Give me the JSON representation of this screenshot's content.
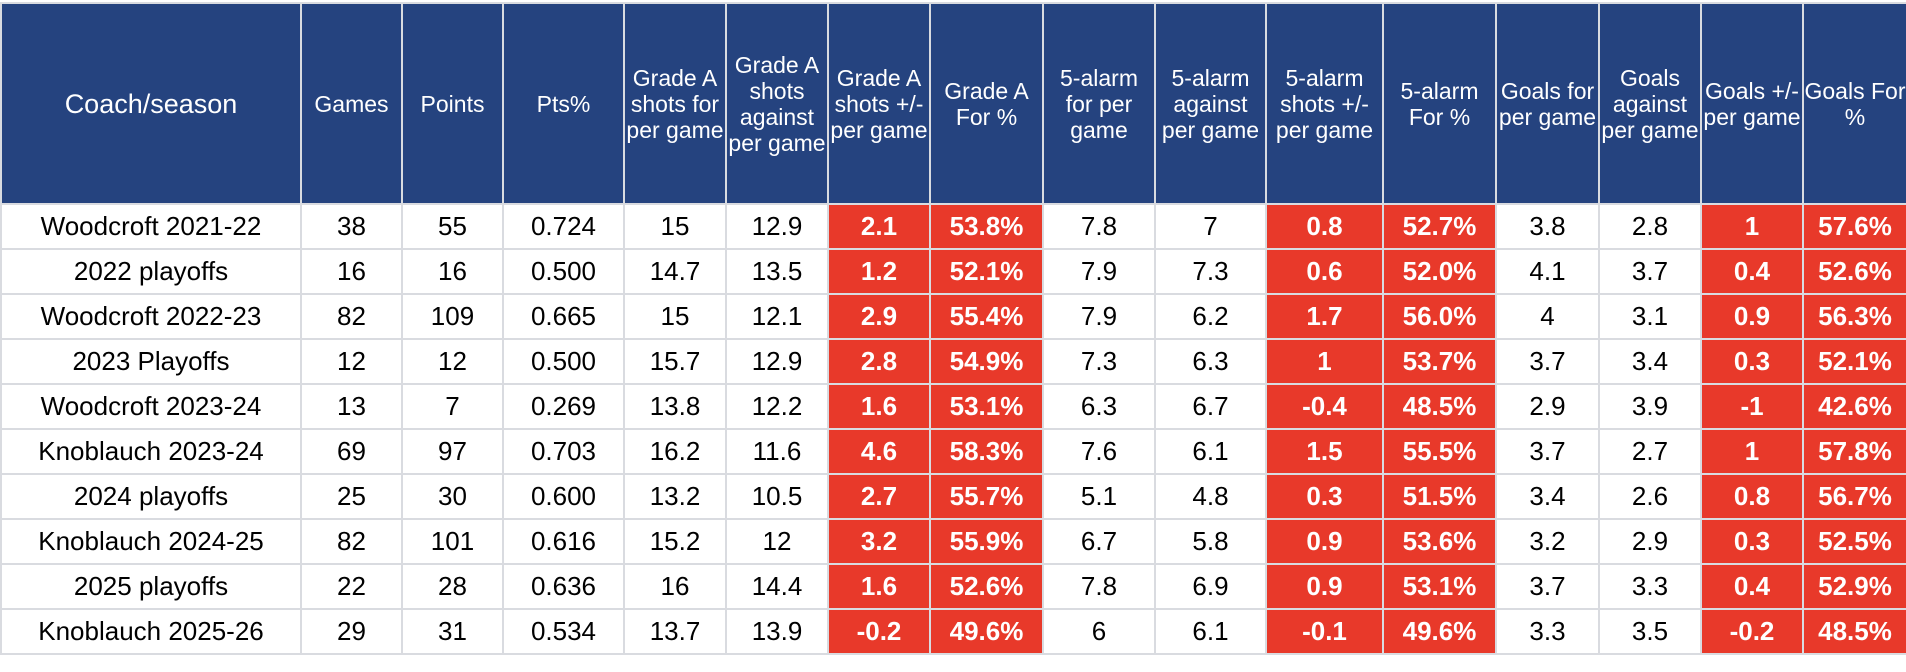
{
  "table": {
    "headers": [
      "Coach/season",
      "Games",
      "Points",
      "Pts%",
      "Grade A shots for per game",
      "Grade A shots against per game",
      "Grade A shots +/- per game",
      "Grade A For %",
      "5-alarm for per game",
      "5-alarm against per game",
      "5-alarm shots +/- per game",
      "5-alarm For %",
      "Goals for per game",
      "Goals against per game",
      "Goals +/- per game",
      "Goals For %"
    ],
    "highlight_color": "#e8392a",
    "header_color": "#25437f",
    "highlighted_columns": [
      6,
      7,
      10,
      11,
      14,
      15
    ],
    "rows": [
      [
        "Woodcroft 2021-22",
        "38",
        "55",
        "0.724",
        "15",
        "12.9",
        "2.1",
        "53.8%",
        "7.8",
        "7",
        "0.8",
        "52.7%",
        "3.8",
        "2.8",
        "1",
        "57.6%"
      ],
      [
        "2022 playoffs",
        "16",
        "16",
        "0.500",
        "14.7",
        "13.5",
        "1.2",
        "52.1%",
        "7.9",
        "7.3",
        "0.6",
        "52.0%",
        "4.1",
        "3.7",
        "0.4",
        "52.6%"
      ],
      [
        "Woodcroft 2022-23",
        "82",
        "109",
        "0.665",
        "15",
        "12.1",
        "2.9",
        "55.4%",
        "7.9",
        "6.2",
        "1.7",
        "56.0%",
        "4",
        "3.1",
        "0.9",
        "56.3%"
      ],
      [
        "2023 Playoffs",
        "12",
        "12",
        "0.500",
        "15.7",
        "12.9",
        "2.8",
        "54.9%",
        "7.3",
        "6.3",
        "1",
        "53.7%",
        "3.7",
        "3.4",
        "0.3",
        "52.1%"
      ],
      [
        "Woodcroft 2023-24",
        "13",
        "7",
        "0.269",
        "13.8",
        "12.2",
        "1.6",
        "53.1%",
        "6.3",
        "6.7",
        "-0.4",
        "48.5%",
        "2.9",
        "3.9",
        "-1",
        "42.6%"
      ],
      [
        "Knoblauch 2023-24",
        "69",
        "97",
        "0.703",
        "16.2",
        "11.6",
        "4.6",
        "58.3%",
        "7.6",
        "6.1",
        "1.5",
        "55.5%",
        "3.7",
        "2.7",
        "1",
        "57.8%"
      ],
      [
        "2024 playoffs",
        "25",
        "30",
        "0.600",
        "13.2",
        "10.5",
        "2.7",
        "55.7%",
        "5.1",
        "4.8",
        "0.3",
        "51.5%",
        "3.4",
        "2.6",
        "0.8",
        "56.7%"
      ],
      [
        "Knoblauch 2024-25",
        "82",
        "101",
        "0.616",
        "15.2",
        "12",
        "3.2",
        "55.9%",
        "6.7",
        "5.8",
        "0.9",
        "53.6%",
        "3.2",
        "2.9",
        "0.3",
        "52.5%"
      ],
      [
        "2025 playoffs",
        "22",
        "28",
        "0.636",
        "16",
        "14.4",
        "1.6",
        "52.6%",
        "7.8",
        "6.9",
        "0.9",
        "53.1%",
        "3.7",
        "3.3",
        "0.4",
        "52.9%"
      ],
      [
        "Knoblauch 2025-26",
        "29",
        "31",
        "0.534",
        "13.7",
        "13.9",
        "-0.2",
        "49.6%",
        "6",
        "6.1",
        "-0.1",
        "49.6%",
        "3.3",
        "3.5",
        "-0.2",
        "48.5%"
      ]
    ]
  }
}
